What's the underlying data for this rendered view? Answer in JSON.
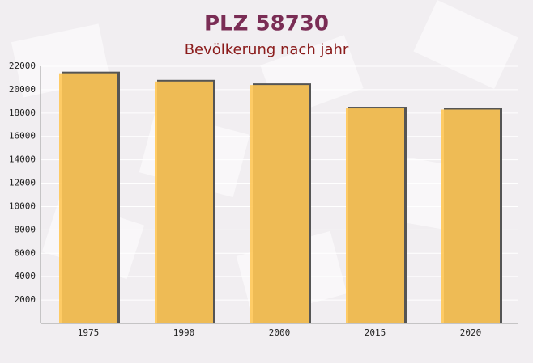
{
  "chart_data": {
    "type": "bar",
    "title": "PLZ 58730",
    "subtitle": "Bevölkerung nach jahr",
    "categories": [
      "1975",
      "1990",
      "2000",
      "2015",
      "2020"
    ],
    "values": [
      21400,
      20700,
      20400,
      18400,
      18300
    ],
    "color": "#ffc655",
    "ylim": [
      0,
      22000
    ],
    "yticks": [
      2000,
      4000,
      6000,
      8000,
      10000,
      12000,
      14000,
      16000,
      18000,
      20000,
      22000
    ],
    "grid": true
  }
}
